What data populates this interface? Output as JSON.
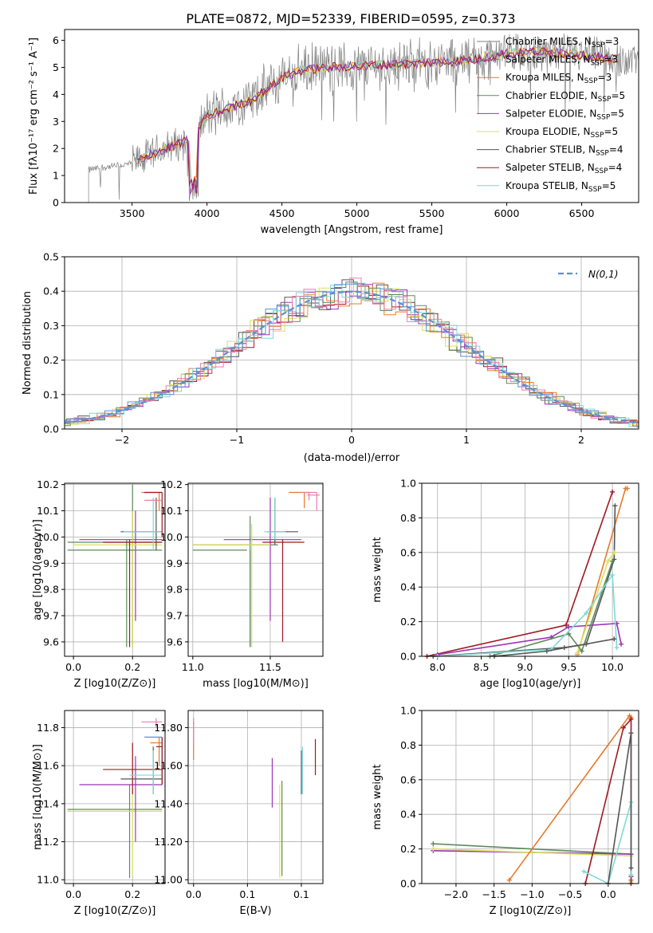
{
  "figure": {
    "title": "PLATE=0872, MJD=52339, FIBERID=0595, z=0.373"
  },
  "chart_data": [
    {
      "panel": "spectrum",
      "type": "line",
      "xlabel": "wavelength [Angstrom, rest frame]",
      "ylabel": "Flux [fλ10⁻¹⁷ erg cm⁻² s⁻¹ A⁻¹]",
      "xlim": [
        3050,
        6880
      ],
      "ylim": [
        0,
        6.4
      ],
      "xticks": [
        3500,
        4000,
        4500,
        5000,
        5500,
        6000,
        6500
      ],
      "yticks": [
        0,
        1,
        2,
        3,
        4,
        5,
        6
      ],
      "continuum": {
        "x": [
          3210,
          3300,
          3400,
          3500,
          3600,
          3700,
          3800,
          3900,
          4000,
          4100,
          4200,
          4300,
          4400,
          4500,
          4600,
          4800,
          5000,
          5200,
          5400,
          5600,
          5800,
          6000,
          6200,
          6400,
          6600,
          6700
        ],
        "y": [
          1.2,
          1.3,
          1.35,
          1.45,
          1.7,
          1.95,
          2.15,
          2.4,
          3.2,
          3.4,
          3.6,
          3.8,
          4.2,
          4.6,
          4.85,
          5.0,
          5.05,
          5.1,
          5.15,
          5.2,
          5.3,
          5.5,
          5.6,
          5.5,
          5.4,
          5.3
        ]
      },
      "legend": [
        {
          "name": "Chabrier MILES, N_SSP=3",
          "base": "Chabrier MILES, N",
          "sub": "SSP",
          "tail": "=3",
          "color": "#7f7f7f"
        },
        {
          "name": "Salpeter MILES, N_SSP=3",
          "base": "Salpeter MILES, N",
          "sub": "SSP",
          "tail": "=3",
          "color": "#7f7f7f"
        },
        {
          "name": "Kroupa MILES, N_SSP=3",
          "base": "Kroupa MILES, N",
          "sub": "SSP",
          "tail": "=3",
          "color": "#e8782a"
        },
        {
          "name": "Chabrier ELODIE, N_SSP=5",
          "base": "Chabrier ELODIE, N",
          "sub": "SSP",
          "tail": "=5",
          "color": "#5e8a5e"
        },
        {
          "name": "Salpeter ELODIE, N_SSP=5",
          "base": "Salpeter ELODIE, N",
          "sub": "SSP",
          "tail": "=5",
          "color": "#9b35b5"
        },
        {
          "name": "Kroupa ELODIE, N_SSP=5",
          "base": "Kroupa ELODIE, N",
          "sub": "SSP",
          "tail": "=5",
          "color": "#d9e05a"
        },
        {
          "name": "Chabrier STELIB, N_SSP=4",
          "base": "Chabrier STELIB, N",
          "sub": "SSP",
          "tail": "=4",
          "color": "#555555"
        },
        {
          "name": "Salpeter STELIB, N_SSP=4",
          "base": "Salpeter STELIB, N",
          "sub": "SSP",
          "tail": "=4",
          "color": "#a01822"
        },
        {
          "name": "Kroupa STELIB, N_SSP=5",
          "base": "Kroupa STELIB, N",
          "sub": "SSP",
          "tail": "=5",
          "color": "#7fd8d8"
        }
      ]
    },
    {
      "panel": "residuals",
      "type": "line",
      "xlabel": "(data-model)/error",
      "ylabel": "Normed distribution",
      "xlim": [
        -2.5,
        2.5
      ],
      "ylim": [
        0,
        0.5
      ],
      "xticks": [
        -2,
        -1,
        0,
        1,
        2
      ],
      "yticks": [
        0.0,
        0.1,
        0.2,
        0.3,
        0.4,
        0.5
      ],
      "gaussian_label": "N(0,1)",
      "gaussian_color": "#5b8fd6",
      "series_colors": [
        "#555555",
        "#a01822",
        "#9b35b5",
        "#d9e05a",
        "#5e8a5e",
        "#e8782a",
        "#7fd8d8",
        "#5b8fd6",
        "#f07ca8"
      ]
    },
    {
      "panel": "Z-vs-age",
      "type": "scatter",
      "xlabel": "Z [log10(Z/Z⊙)]",
      "ylabel": "age [log10(age/yr)]",
      "xlim": [
        -0.03,
        0.31
      ],
      "ylim": [
        9.545,
        10.205
      ],
      "xticks": [
        0.0,
        0.2
      ],
      "yticks": [
        9.6,
        9.7,
        9.8,
        9.9,
        10.0,
        10.1,
        10.2
      ]
    },
    {
      "panel": "mass-vs-age",
      "type": "scatter",
      "xlabel": "mass [log10(M/M⊙)]",
      "ylabel": "",
      "xlim": [
        10.97,
        11.84
      ],
      "ylim": [
        9.545,
        10.205
      ],
      "xticks": [
        11.0,
        11.5
      ],
      "yticks": [
        9.6,
        9.7,
        9.8,
        9.9,
        10.0,
        10.1,
        10.2
      ]
    },
    {
      "panel": "age-vs-weight",
      "type": "line",
      "xlabel": "age [log10(age/yr)]",
      "ylabel": "mass weight",
      "xlim": [
        7.82,
        10.3
      ],
      "ylim": [
        0,
        1.0
      ],
      "xticks": [
        8.0,
        8.5,
        9.0,
        9.5,
        10.0
      ],
      "yticks": [
        0.0,
        0.2,
        0.4,
        0.6,
        0.8,
        1.0
      ],
      "series": [
        {
          "color": "#a01822",
          "x": [
            7.88,
            9.47,
            10.0
          ],
          "y": [
            0.0,
            0.18,
            0.95
          ]
        },
        {
          "color": "#e8782a",
          "x": [
            9.6,
            10.15,
            10.17
          ],
          "y": [
            0.01,
            0.97,
            0.97
          ]
        },
        {
          "color": "#555555",
          "x": [
            7.95,
            9.45,
            9.7,
            10.02,
            10.03
          ],
          "y": [
            0.0,
            0.05,
            0.07,
            0.56,
            0.87
          ]
        },
        {
          "color": "#9b35b5",
          "x": [
            8.0,
            9.3,
            9.5,
            10.05,
            10.1
          ],
          "y": [
            0.01,
            0.11,
            0.17,
            0.19,
            0.07
          ]
        },
        {
          "color": "#d9e05a",
          "x": [
            9.6,
            9.95,
            10.02
          ],
          "y": [
            0.02,
            0.55,
            0.6
          ]
        },
        {
          "color": "#5e8a5e",
          "x": [
            8.6,
            9.5,
            9.65,
            10.0
          ],
          "y": [
            0.0,
            0.13,
            0.03,
            0.55
          ]
        },
        {
          "color": "#7fd8d8",
          "x": [
            8.0,
            9.3,
            9.7,
            10.0,
            10.05
          ],
          "y": [
            0.0,
            0.04,
            0.25,
            0.47,
            0.05
          ]
        },
        {
          "color": "#555555",
          "x": [
            8.65,
            9.25,
            10.02
          ],
          "y": [
            0.0,
            0.03,
            0.1
          ]
        }
      ]
    },
    {
      "panel": "Z-vs-mass",
      "type": "scatter",
      "xlabel": "Z [log10(Z/Z⊙)]",
      "ylabel": "mass [log10(M/M⊙)]",
      "xlim": [
        -0.03,
        0.31
      ],
      "ylim": [
        10.98,
        11.89
      ],
      "xticks": [
        0.0,
        0.2
      ],
      "yticks": [
        11.0,
        11.2,
        11.4,
        11.6,
        11.8
      ]
    },
    {
      "panel": "ebv-vs-mass",
      "type": "scatter",
      "xlabel": "E(B-V)",
      "ylabel": "",
      "xlim": [
        -0.005,
        0.12
      ],
      "ylim": [
        10.98,
        11.89
      ],
      "xticks": [
        0.0,
        0.05,
        0.1
      ],
      "yticks": [
        11.0,
        11.2,
        11.4,
        11.6,
        11.8
      ]
    },
    {
      "panel": "Z-vs-weight",
      "type": "line",
      "xlabel": "Z [log10(Z/Z⊙)]",
      "ylabel": "mass weight",
      "xlim": [
        -2.45,
        0.4
      ],
      "ylim": [
        0,
        1.0
      ],
      "xticks": [
        -2.0,
        -1.5,
        -1.0,
        -0.5,
        0.0
      ],
      "yticks": [
        0.0,
        0.2,
        0.4,
        0.6,
        0.8,
        1.0
      ],
      "series": [
        {
          "color": "#5e8a5e",
          "x": [
            -2.3,
            0.3,
            0.3
          ],
          "y": [
            0.23,
            0.17,
            0.02
          ]
        },
        {
          "color": "#9b35b5",
          "x": [
            -2.3,
            0.3,
            0.3
          ],
          "y": [
            0.19,
            0.17,
            0.04
          ]
        },
        {
          "color": "#d9e05a",
          "x": [
            -2.3,
            0.3,
            0.3
          ],
          "y": [
            0.2,
            0.16,
            0.01
          ]
        },
        {
          "color": "#e8782a",
          "x": [
            -1.3,
            0.28,
            0.3
          ],
          "y": [
            0.02,
            0.97,
            0.96
          ]
        },
        {
          "color": "#a01822",
          "x": [
            -0.3,
            0.2,
            0.3,
            0.3
          ],
          "y": [
            0.0,
            0.9,
            0.95,
            0.0
          ]
        },
        {
          "color": "#7fd8d8",
          "x": [
            -0.32,
            0.0,
            0.3,
            0.3
          ],
          "y": [
            0.07,
            0.0,
            0.47,
            0.05
          ]
        },
        {
          "color": "#555555",
          "x": [
            0.0,
            0.3,
            0.3
          ],
          "y": [
            0.0,
            0.87,
            0.09
          ]
        }
      ]
    }
  ]
}
